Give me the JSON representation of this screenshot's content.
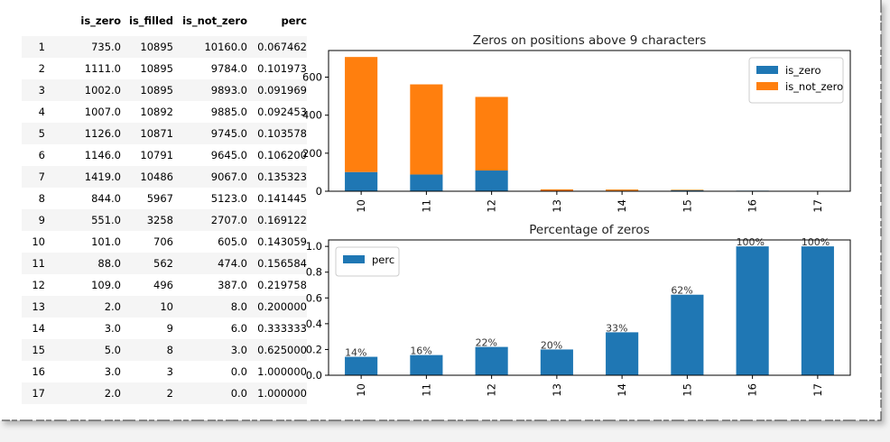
{
  "table": {
    "columns": [
      "",
      "is_zero",
      "is_filled",
      "is_not_zero",
      "perc"
    ],
    "rows": [
      [
        "1",
        "735.0",
        "10895",
        "10160.0",
        "0.067462"
      ],
      [
        "2",
        "1111.0",
        "10895",
        "9784.0",
        "0.101973"
      ],
      [
        "3",
        "1002.0",
        "10895",
        "9893.0",
        "0.091969"
      ],
      [
        "4",
        "1007.0",
        "10892",
        "9885.0",
        "0.092453"
      ],
      [
        "5",
        "1126.0",
        "10871",
        "9745.0",
        "0.103578"
      ],
      [
        "6",
        "1146.0",
        "10791",
        "9645.0",
        "0.106200"
      ],
      [
        "7",
        "1419.0",
        "10486",
        "9067.0",
        "0.135323"
      ],
      [
        "8",
        "844.0",
        "5967",
        "5123.0",
        "0.141445"
      ],
      [
        "9",
        "551.0",
        "3258",
        "2707.0",
        "0.169122"
      ],
      [
        "10",
        "101.0",
        "706",
        "605.0",
        "0.143059"
      ],
      [
        "11",
        "88.0",
        "562",
        "474.0",
        "0.156584"
      ],
      [
        "12",
        "109.0",
        "496",
        "387.0",
        "0.219758"
      ],
      [
        "13",
        "2.0",
        "10",
        "8.0",
        "0.200000"
      ],
      [
        "14",
        "3.0",
        "9",
        "6.0",
        "0.333333"
      ],
      [
        "15",
        "5.0",
        "8",
        "3.0",
        "0.625000"
      ],
      [
        "16",
        "3.0",
        "3",
        "0.0",
        "1.000000"
      ],
      [
        "17",
        "2.0",
        "2",
        "0.0",
        "1.000000"
      ]
    ]
  },
  "colors": {
    "blue": "#1f77b4",
    "orange": "#ff7f0e",
    "background": "#ffffff"
  },
  "chart_data": [
    {
      "type": "bar",
      "stacked": true,
      "title": "Zeros on positions above 9 characters",
      "categories": [
        "10",
        "11",
        "12",
        "13",
        "14",
        "15",
        "16",
        "17"
      ],
      "series": [
        {
          "name": "is_zero",
          "color": "#1f77b4",
          "values": [
            101,
            88,
            109,
            2,
            3,
            5,
            3,
            2
          ]
        },
        {
          "name": "is_not_zero",
          "color": "#ff7f0e",
          "values": [
            605,
            474,
            387,
            8,
            6,
            3,
            0,
            0
          ]
        }
      ],
      "ylim": [
        0,
        740
      ],
      "yticks": [
        "0",
        "200",
        "400",
        "600"
      ],
      "legend": "top-right"
    },
    {
      "type": "bar",
      "title": "Percentage of zeros",
      "categories": [
        "10",
        "11",
        "12",
        "13",
        "14",
        "15",
        "16",
        "17"
      ],
      "series": [
        {
          "name": "perc",
          "color": "#1f77b4",
          "values": [
            0.143059,
            0.156584,
            0.219758,
            0.2,
            0.333333,
            0.625,
            1.0,
            1.0
          ]
        }
      ],
      "data_labels": [
        "14%",
        "16%",
        "22%",
        "20%",
        "33%",
        "62%",
        "100%",
        "100%"
      ],
      "ylim": [
        0,
        1.05
      ],
      "yticks": [
        "0.0",
        "0.2",
        "0.4",
        "0.6",
        "0.8",
        "1.0"
      ],
      "legend": "top-left"
    }
  ]
}
